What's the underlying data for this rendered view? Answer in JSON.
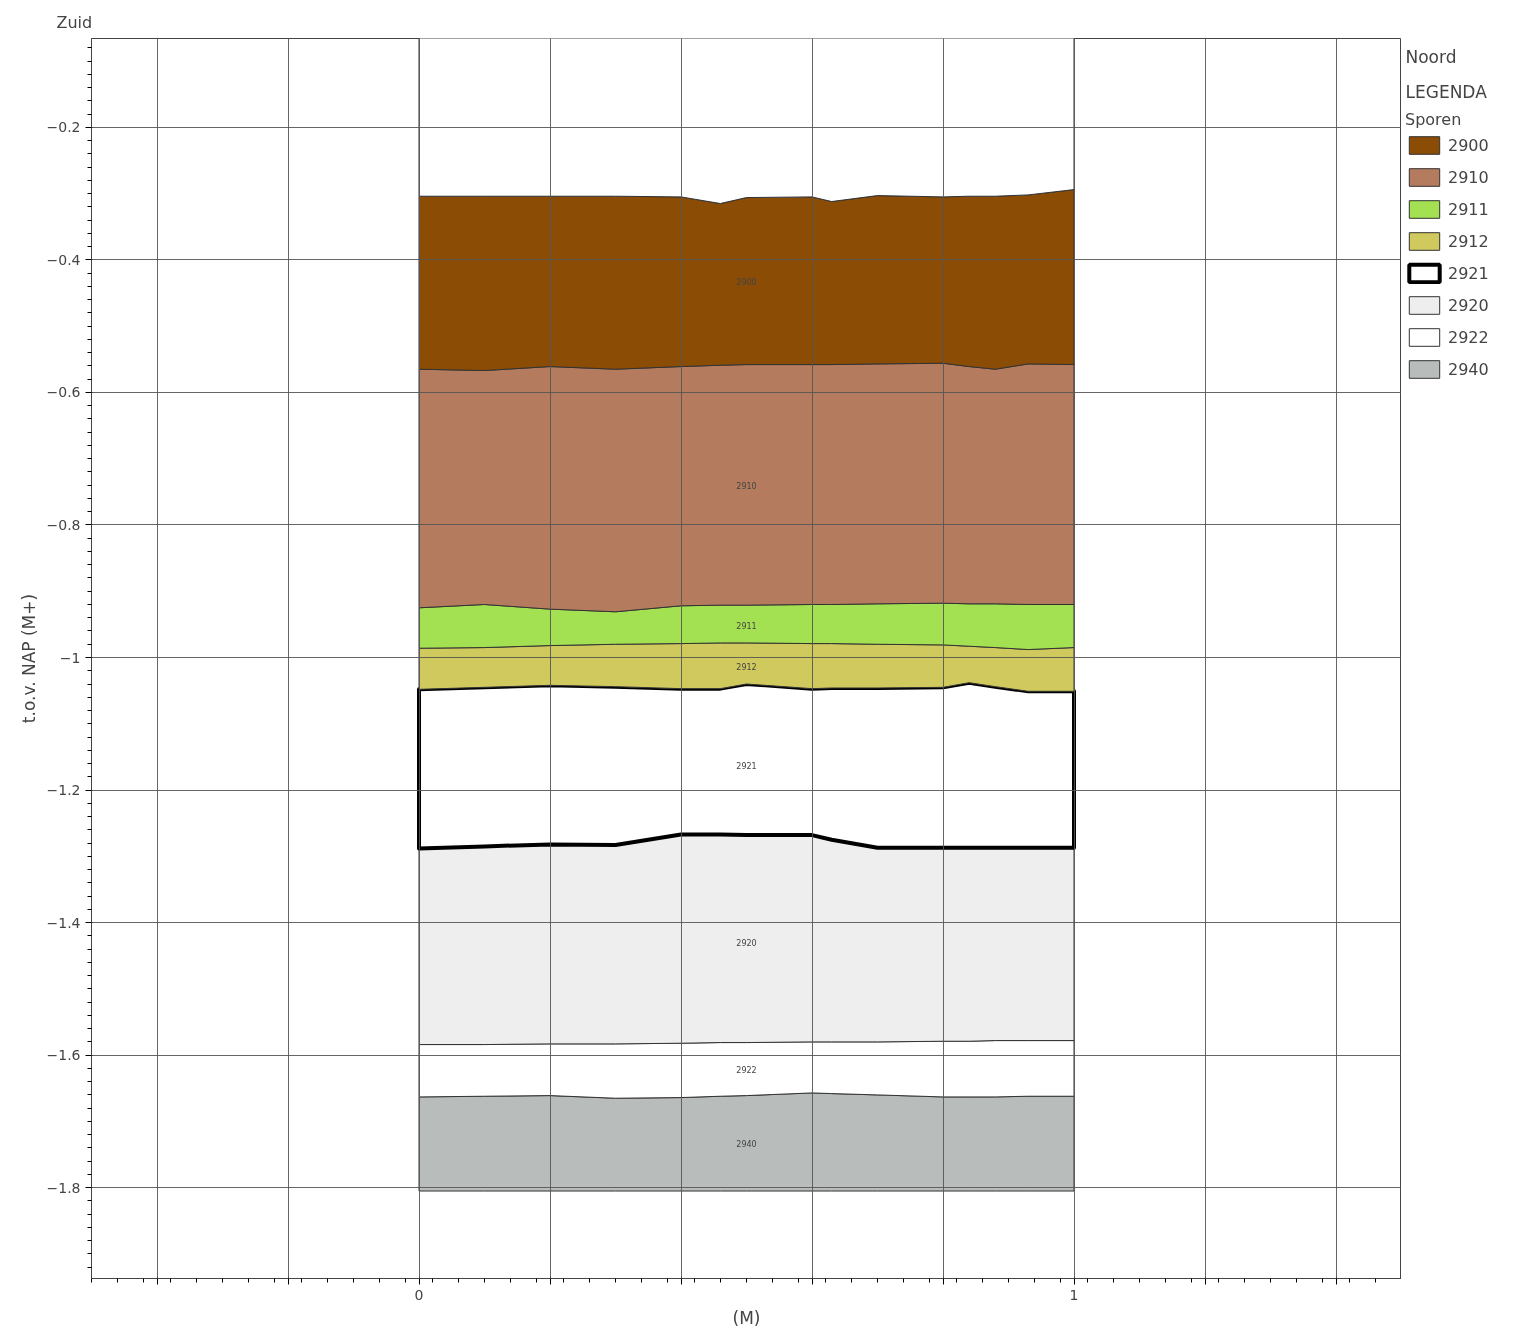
{
  "chart_data": {
    "type": "area",
    "xlabel": "(M)",
    "ylabel": "t.o.v. NAP (M+)",
    "legend_title": "Sporen",
    "legend": "right",
    "grid": true,
    "xlim": [
      -0.5,
      1.5
    ],
    "ylim": [
      -1.937,
      -0.066
    ],
    "xticks": [
      {
        "value": -0.4,
        "label": null
      },
      {
        "value": -0.2,
        "label": null
      },
      0,
      {
        "value": 0.2,
        "label": null
      },
      {
        "value": 0.4,
        "label": null
      },
      {
        "value": 0.6,
        "label": null
      },
      {
        "value": 0.8,
        "label": null
      },
      1,
      {
        "value": 1.2,
        "label": null
      },
      {
        "value": 1.4,
        "label": null
      }
    ],
    "yticks": [
      -0.2,
      -0.4,
      -0.6,
      -0.8,
      -1.0,
      -1.2,
      -1.4,
      -1.6,
      -1.8
    ],
    "x": [
      0,
      0.1,
      0.2,
      0.3,
      0.4,
      0.46,
      0.5,
      0.6,
      0.63,
      0.7,
      0.8,
      0.84,
      0.88,
      0.93,
      1.0
    ],
    "series": [
      {
        "color": "#ffffff",
        "values": [
          -0.304,
          -0.304,
          -0.304,
          -0.304,
          -0.305,
          -0.315,
          -0.306,
          -0.305,
          -0.312,
          -0.303,
          -0.305,
          -0.304,
          -0.304,
          -0.302,
          -0.294
        ]
      },
      {
        "name": "2900",
        "color": "#8b4c05",
        "values": [
          -0.565,
          -0.567,
          -0.561,
          -0.565,
          -0.561,
          -0.559,
          -0.558,
          -0.558,
          -0.558,
          -0.557,
          -0.556,
          -0.561,
          -0.565,
          -0.557,
          -0.558
        ]
      },
      {
        "name": "2910",
        "color": "#b57b5e",
        "values": [
          -0.925,
          -0.92,
          -0.927,
          -0.931,
          -0.922,
          -0.921,
          -0.921,
          -0.92,
          -0.92,
          -0.919,
          -0.918,
          -0.919,
          -0.919,
          -0.92,
          -0.92
        ]
      },
      {
        "name": "2911",
        "color": "#a3e052",
        "values": [
          -0.986,
          -0.985,
          -0.982,
          -0.98,
          -0.979,
          -0.978,
          -0.978,
          -0.979,
          -0.979,
          -0.98,
          -0.981,
          -0.983,
          -0.985,
          -0.988,
          -0.985
        ]
      },
      {
        "name": "2912",
        "color": "#d0c95e",
        "values": [
          -1.048,
          -1.045,
          -1.042,
          -1.044,
          -1.047,
          -1.047,
          -1.04,
          -1.047,
          -1.046,
          -1.046,
          -1.045,
          -1.038,
          -1.044,
          -1.051,
          -1.051
        ]
      },
      {
        "name": "2921",
        "color": "#ffffff",
        "line_style": "solid",
        "values": [
          -1.288,
          -1.285,
          -1.282,
          -1.283,
          -1.267,
          -1.267,
          -1.268,
          -1.268,
          -1.275,
          -1.287,
          -1.287,
          -1.287,
          -1.287,
          -1.287,
          -1.287
        ]
      },
      {
        "name": "2920",
        "color": "#eeeeee",
        "values": [
          -1.584,
          -1.584,
          -1.583,
          -1.583,
          -1.582,
          -1.581,
          -1.581,
          -1.58,
          -1.58,
          -1.58,
          -1.579,
          -1.579,
          -1.578,
          -1.578,
          -1.578
        ]
      },
      {
        "name": "2922",
        "color": "#ffffff",
        "values": [
          -1.663,
          -1.662,
          -1.661,
          -1.665,
          -1.664,
          -1.662,
          -1.661,
          -1.657,
          -1.658,
          -1.66,
          -1.663,
          -1.663,
          -1.663,
          -1.662,
          -1.662
        ]
      },
      {
        "name": "2940",
        "color": "#b8bdbb",
        "values": [
          -1.805,
          -1.805,
          -1.805,
          -1.805,
          -1.805,
          -1.805,
          -1.805,
          -1.805,
          -1.805,
          -1.805,
          -1.805,
          -1.805,
          -1.805,
          -1.805,
          -1.805
        ]
      }
    ],
    "annotations": [
      "Zuid",
      "Noord",
      "LEGENDA",
      "2900",
      "2910",
      "2911",
      "2912",
      "2921",
      "2920",
      "2922",
      "2940"
    ]
  }
}
